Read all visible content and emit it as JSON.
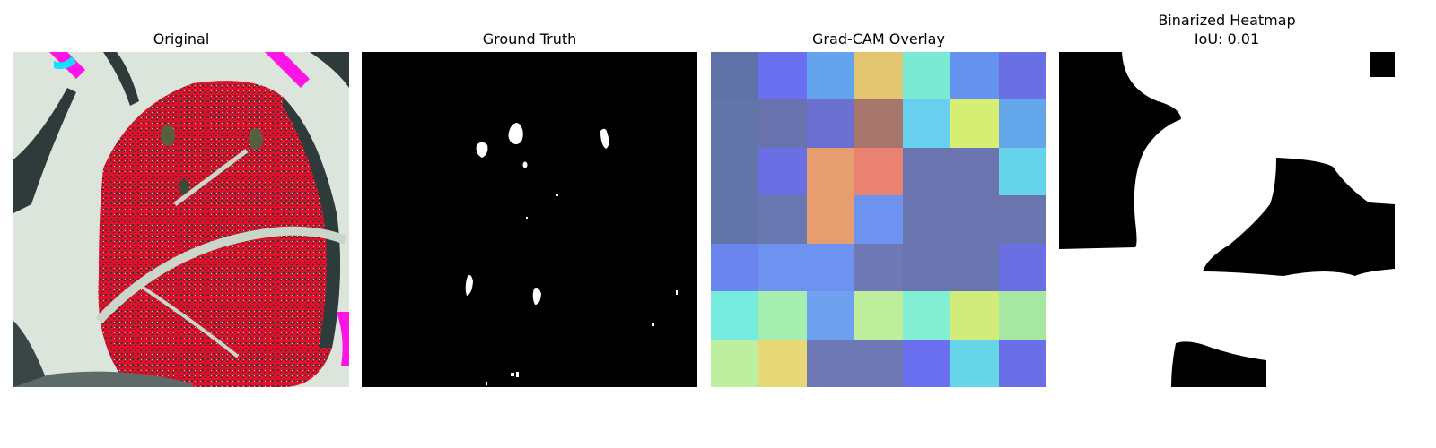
{
  "panels": {
    "original": {
      "title": "Original"
    },
    "ground_truth": {
      "title": "Ground Truth"
    },
    "gradcam": {
      "title": "Grad-CAM Overlay",
      "cell_colors": [
        [
          "#5f72a8",
          "#6a6ff0",
          "#64a4ee",
          "#e3c672",
          "#7aebd2",
          "#6592ee",
          "#6a6fe3"
        ],
        [
          "#6275a8",
          "#6a72ae",
          "#6a6fd0",
          "#a6766c",
          "#68d0ee",
          "#d6ee74",
          "#64a6ea"
        ],
        [
          "#6275a8",
          "#6a6fe3",
          "#e69e70",
          "#ea8272",
          "#6a74ae",
          "#6a74ae",
          "#64d2e8"
        ],
        [
          "#6275a8",
          "#6a78b2",
          "#e69e70",
          "#6e92f0",
          "#6a74ae",
          "#6a74ae",
          "#6a74ae"
        ],
        [
          "#6a86ee",
          "#6e92f0",
          "#6e92f0",
          "#6e78b4",
          "#6a74ae",
          "#6a74ae",
          "#6a6fe3"
        ],
        [
          "#76ecde",
          "#a6eeb0",
          "#6ea2f0",
          "#beee9c",
          "#84eed2",
          "#d2ec7c",
          "#a6e8a2"
        ],
        [
          "#beeea0",
          "#e6d874",
          "#6e78b4",
          "#6e78b4",
          "#6a6ff0",
          "#66d6e6",
          "#6a6fe8"
        ]
      ]
    },
    "binarized": {
      "title_line1": "Binarized Heatmap",
      "title_line2": "IoU: 0.01"
    }
  }
}
